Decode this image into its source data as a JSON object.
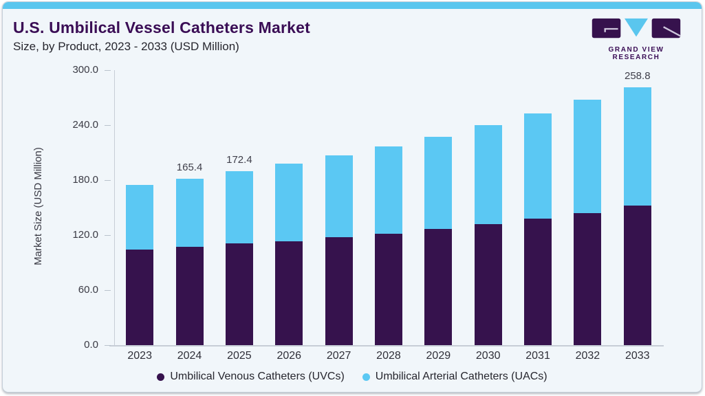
{
  "header": {
    "title": "U.S. Umbilical Vessel Catheters Market",
    "subtitle": "Size, by Product, 2023 - 2033 (USD Million)"
  },
  "logo": {
    "text": "GRAND VIEW RESEARCH"
  },
  "colors": {
    "uvc_bar": "#36124d",
    "uac_bar": "#5bc8f3",
    "accent_bar": "#5ac6ee",
    "title_text": "#3a0d55",
    "card_background": "#f1f6fa"
  },
  "chart_data": {
    "type": "bar",
    "stacked": true,
    "title": "U.S. Umbilical Vessel Catheters Market Size, by Product, 2023 - 2033 (USD Million)",
    "xlabel": "",
    "ylabel": "Market Size (USD Million)",
    "ylim": [
      0,
      300
    ],
    "yticks": [
      0.0,
      60.0,
      120.0,
      180.0,
      240.0,
      300.0
    ],
    "grid": false,
    "legend_position": "bottom",
    "categories": [
      "2023",
      "2024",
      "2025",
      "2026",
      "2027",
      "2028",
      "2029",
      "2030",
      "2031",
      "2032",
      "2033"
    ],
    "series": [
      {
        "name": "Umbilical Venous Catheters (UVCs)",
        "color": "#36124d",
        "values": [
          95.0,
          97.6,
          101.0,
          103.2,
          107.2,
          110.6,
          115.4,
          120.1,
          125.6,
          131.1,
          139.9
        ]
      },
      {
        "name": "Umbilical Arterial Catheters (UACs)",
        "color": "#5bc8f3",
        "values": [
          64.0,
          67.8,
          71.4,
          77.0,
          81.2,
          86.7,
          91.4,
          98.3,
          104.4,
          112.6,
          118.9
        ]
      }
    ],
    "totals": [
      159.0,
      165.4,
      172.4,
      180.2,
      188.4,
      197.3,
      206.8,
      218.4,
      230.0,
      243.7,
      258.8
    ],
    "value_labels": [
      "",
      "165.4",
      "172.4",
      "",
      "",
      "",
      "",
      "",
      "",
      "",
      "258.8"
    ]
  }
}
